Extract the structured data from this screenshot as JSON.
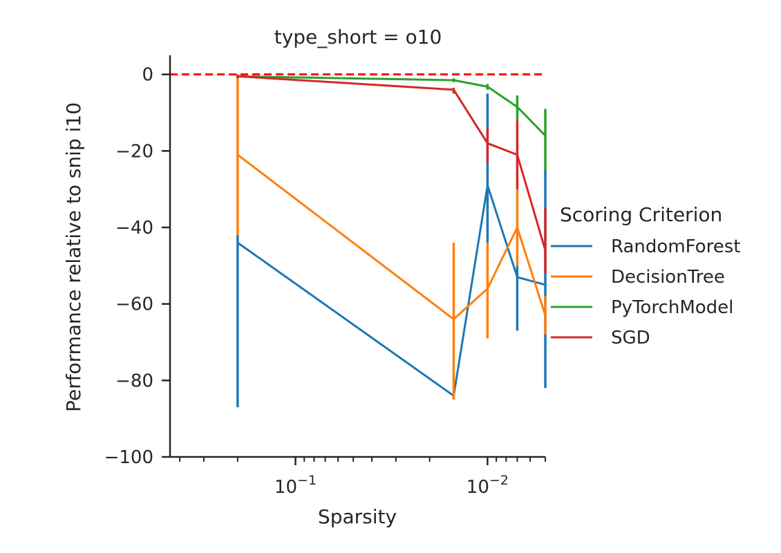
{
  "chart_data": {
    "type": "line",
    "title": "type_short = o10",
    "xlabel": "Sparsity",
    "ylabel": "Performance relative to snip i10",
    "x_scale": "log-reversed",
    "xlim": [
      0.45,
      0.005
    ],
    "ylim": [
      -100,
      5
    ],
    "x_ticks": [
      {
        "value": 0.1,
        "label": "10",
        "exp": "−1"
      },
      {
        "value": 0.01,
        "label": "10",
        "exp": "−2"
      }
    ],
    "y_ticks": [
      {
        "value": 0,
        "label": "0"
      },
      {
        "value": -20,
        "label": "−20"
      },
      {
        "value": -40,
        "label": "−40"
      },
      {
        "value": -60,
        "label": "−60"
      },
      {
        "value": -80,
        "label": "−80"
      },
      {
        "value": -100,
        "label": "−100"
      }
    ],
    "reference_line": {
      "y": 0,
      "color": "#ff0000",
      "style": "dashed"
    },
    "x": [
      0.2,
      0.015,
      0.01,
      0.007,
      0.005
    ],
    "series": [
      {
        "name": "RandomForest",
        "color": "#1f77b4",
        "values": [
          -44,
          -84,
          -29,
          -53,
          -55
        ],
        "ci": [
          [
            -87,
            -42
          ],
          [
            -85,
            -84
          ],
          [
            -44,
            -5
          ],
          [
            -67,
            -50
          ],
          [
            -82,
            -25
          ]
        ]
      },
      {
        "name": "DecisionTree",
        "color": "#ff7f0e",
        "values": [
          -21,
          -64,
          -56,
          -40,
          -63
        ],
        "ci": [
          [
            -42,
            -1
          ],
          [
            -85,
            -44
          ],
          [
            -69,
            -44
          ],
          [
            -50,
            -30
          ],
          [
            -68,
            -58
          ]
        ]
      },
      {
        "name": "PyTorchModel",
        "color": "#2ca02c",
        "values": [
          -0.5,
          -1.5,
          -3.2,
          -8.5,
          -16
        ],
        "ci": [
          [
            -1,
            0
          ],
          [
            -2,
            -1
          ],
          [
            -4,
            -2.5
          ],
          [
            -12,
            -5.5
          ],
          [
            -25,
            -9
          ]
        ]
      },
      {
        "name": "SGD",
        "color": "#d62728",
        "values": [
          -0.5,
          -4,
          -18,
          -21,
          -46
        ],
        "ci": [
          [
            -1,
            0
          ],
          [
            -5,
            -3.5
          ],
          [
            -23,
            -14
          ],
          [
            -30,
            -12
          ],
          [
            -52,
            -35
          ]
        ]
      }
    ],
    "legend": {
      "title": "Scoring Criterion",
      "placement": "right outside"
    },
    "grid": false
  }
}
